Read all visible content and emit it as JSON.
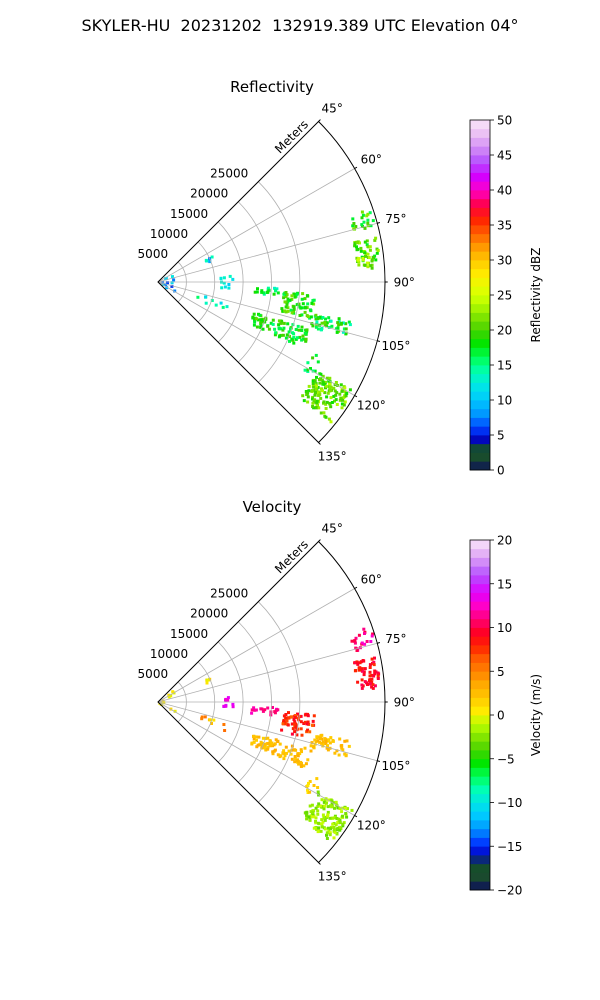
{
  "figure": {
    "title": "SKYLER-HU  20231202  132919.389 UTC Elevation 04°"
  },
  "chart_data": [
    {
      "type": "polar-sector-heatmap",
      "title": "Reflectivity",
      "radial_label": "Meters",
      "r_ticks": [
        5000,
        10000,
        15000,
        20000,
        25000
      ],
      "r_tick_labels": [
        "5000",
        "10000",
        "15000",
        "20000",
        "25000"
      ],
      "rlim": [
        0,
        40000
      ],
      "theta_ticks": [
        45,
        60,
        75,
        90,
        105,
        120,
        135
      ],
      "theta_tick_labels": [
        "45°",
        "60°",
        "75°",
        "90°",
        "105°",
        "120°",
        "135°"
      ],
      "theta_range": [
        45,
        135
      ],
      "grid": true,
      "colorbar": {
        "label": "Reflectivity dBZ",
        "range": [
          0,
          50
        ],
        "ticks": [
          0,
          5,
          10,
          15,
          20,
          25,
          30,
          35,
          40,
          45,
          50
        ],
        "tick_labels": [
          "0",
          "5",
          "10",
          "15",
          "20",
          "25",
          "30",
          "35",
          "40",
          "45",
          "50"
        ],
        "stops": [
          {
            "v": 0,
            "color": "#0b0b5e"
          },
          {
            "v": 1.5,
            "color": "#1a4a2e"
          },
          {
            "v": 3,
            "color": "#14502a"
          },
          {
            "v": 4.5,
            "color": "#0000c8"
          },
          {
            "v": 6,
            "color": "#0040ff"
          },
          {
            "v": 8,
            "color": "#0096ff"
          },
          {
            "v": 10,
            "color": "#00c8ff"
          },
          {
            "v": 12,
            "color": "#00e6e6"
          },
          {
            "v": 14,
            "color": "#00ffb4"
          },
          {
            "v": 16,
            "color": "#00ff5a"
          },
          {
            "v": 18,
            "color": "#00e600"
          },
          {
            "v": 20,
            "color": "#46d200"
          },
          {
            "v": 22,
            "color": "#82e600"
          },
          {
            "v": 24,
            "color": "#beff00"
          },
          {
            "v": 26,
            "color": "#e6ff00"
          },
          {
            "v": 28,
            "color": "#ffeb00"
          },
          {
            "v": 30,
            "color": "#ffc800"
          },
          {
            "v": 32,
            "color": "#ff9600"
          },
          {
            "v": 34,
            "color": "#ff5a00"
          },
          {
            "v": 36,
            "color": "#ff1e00"
          },
          {
            "v": 38,
            "color": "#ff0050"
          },
          {
            "v": 40,
            "color": "#ff00c8"
          },
          {
            "v": 42,
            "color": "#d200ff"
          },
          {
            "v": 44,
            "color": "#b450ff"
          },
          {
            "v": 46,
            "color": "#d28cf5"
          },
          {
            "v": 48,
            "color": "#ebbef5"
          },
          {
            "v": 50,
            "color": "#fae6fa"
          }
        ]
      },
      "echoes": [
        {
          "az_min": 47,
          "az_max": 130,
          "r_min": 0,
          "r_max": 3200,
          "value": 9,
          "spread": 4,
          "density": 0.45
        },
        {
          "az_min": 63,
          "az_max": 67,
          "r_min": 9000,
          "r_max": 10400,
          "value": 9,
          "spread": 5,
          "density": 0.5
        },
        {
          "az_min": 84,
          "az_max": 94,
          "r_min": 10800,
          "r_max": 13000,
          "value": 12,
          "spread": 4,
          "density": 0.7
        },
        {
          "az_min": 106,
          "az_max": 113,
          "r_min": 7000,
          "r_max": 13000,
          "value": 14,
          "spread": 3,
          "density": 0.35
        },
        {
          "az_min": 92,
          "az_max": 96,
          "r_min": 16000,
          "r_max": 21000,
          "value": 16,
          "spread": 3,
          "density": 0.8
        },
        {
          "az_min": 94,
          "az_max": 103,
          "r_min": 22000,
          "r_max": 27500,
          "value": 19,
          "spread": 3,
          "density": 0.85
        },
        {
          "az_min": 101,
          "az_max": 106,
          "r_min": 27500,
          "r_max": 34500,
          "value": 17,
          "spread": 4,
          "density": 0.75
        },
        {
          "az_min": 107,
          "az_max": 114,
          "r_min": 17500,
          "r_max": 28000,
          "value": 18,
          "spread": 3,
          "density": 0.85
        },
        {
          "az_min": 114,
          "az_max": 121,
          "r_min": 29500,
          "r_max": 32000,
          "value": 17,
          "spread": 3,
          "density": 0.3
        },
        {
          "az_min": 119,
          "az_max": 129,
          "r_min": 32000,
          "r_max": 39000,
          "value": 21,
          "spread": 3,
          "density": 0.9
        },
        {
          "az_min": 78,
          "az_max": 86,
          "r_min": 35000,
          "r_max": 39000,
          "value": 21,
          "spread": 4,
          "density": 0.8
        },
        {
          "az_min": 70,
          "az_max": 75,
          "r_min": 35500,
          "r_max": 39500,
          "value": 19,
          "spread": 4,
          "density": 0.45
        }
      ]
    },
    {
      "type": "polar-sector-heatmap",
      "title": "Velocity",
      "radial_label": "Meters",
      "r_ticks": [
        5000,
        10000,
        15000,
        20000,
        25000
      ],
      "r_tick_labels": [
        "5000",
        "10000",
        "15000",
        "20000",
        "25000"
      ],
      "rlim": [
        0,
        40000
      ],
      "theta_ticks": [
        45,
        60,
        75,
        90,
        105,
        120,
        135
      ],
      "theta_tick_labels": [
        "45°",
        "60°",
        "75°",
        "90°",
        "105°",
        "120°",
        "135°"
      ],
      "theta_range": [
        45,
        135
      ],
      "grid": true,
      "colorbar": {
        "label": "Velocity (m/s)",
        "range": [
          -20,
          20
        ],
        "ticks": [
          -20,
          -15,
          -10,
          -5,
          0,
          5,
          10,
          15,
          20
        ],
        "tick_labels": [
          "−20",
          "−15",
          "−10",
          "−5",
          "0",
          "5",
          "10",
          "15",
          "20"
        ],
        "stops": [
          {
            "v": -20,
            "color": "#0b0b5e"
          },
          {
            "v": -18.5,
            "color": "#1a4a2e"
          },
          {
            "v": -17,
            "color": "#14502a"
          },
          {
            "v": -16,
            "color": "#0000c8"
          },
          {
            "v": -14.5,
            "color": "#0040ff"
          },
          {
            "v": -13,
            "color": "#0096ff"
          },
          {
            "v": -11.5,
            "color": "#00c8ff"
          },
          {
            "v": -10,
            "color": "#00e6e6"
          },
          {
            "v": -8.5,
            "color": "#00ffb4"
          },
          {
            "v": -7,
            "color": "#00ff5a"
          },
          {
            "v": -5.5,
            "color": "#00e600"
          },
          {
            "v": -4,
            "color": "#46d200"
          },
          {
            "v": -2.5,
            "color": "#82e600"
          },
          {
            "v": -1,
            "color": "#beff00"
          },
          {
            "v": 0.5,
            "color": "#ffeb00"
          },
          {
            "v": 2,
            "color": "#ffc800"
          },
          {
            "v": 3.5,
            "color": "#ffaa00"
          },
          {
            "v": 5,
            "color": "#ff8200"
          },
          {
            "v": 6.5,
            "color": "#ff5a00"
          },
          {
            "v": 8,
            "color": "#ff1e00"
          },
          {
            "v": 9.5,
            "color": "#ff0028"
          },
          {
            "v": 11,
            "color": "#ff0078"
          },
          {
            "v": 12.5,
            "color": "#ff00c8"
          },
          {
            "v": 14,
            "color": "#e100ff"
          },
          {
            "v": 16,
            "color": "#b450ff"
          },
          {
            "v": 18,
            "color": "#dca0f5"
          },
          {
            "v": 20,
            "color": "#fae6fa"
          }
        ]
      },
      "echoes": [
        {
          "az_min": 47,
          "az_max": 130,
          "r_min": 0,
          "r_max": 3200,
          "value": 0.5,
          "spread": 1,
          "density": 0.45
        },
        {
          "az_min": 63,
          "az_max": 67,
          "r_min": 9000,
          "r_max": 10400,
          "value": 0.5,
          "spread": 1.5,
          "density": 0.5
        },
        {
          "az_min": 84,
          "az_max": 94,
          "r_min": 10800,
          "r_max": 13000,
          "value": 13.5,
          "spread": 1,
          "density": 0.7
        },
        {
          "az_min": 106,
          "az_max": 113,
          "r_min": 7000,
          "r_max": 13000,
          "value": 3,
          "spread": 3,
          "density": 0.35
        },
        {
          "az_min": 92,
          "az_max": 96,
          "r_min": 16000,
          "r_max": 21000,
          "value": 12,
          "spread": 1.5,
          "density": 0.8
        },
        {
          "az_min": 94,
          "az_max": 103,
          "r_min": 22000,
          "r_max": 27500,
          "value": 8,
          "spread": 2,
          "density": 0.85
        },
        {
          "az_min": 101,
          "az_max": 106,
          "r_min": 27500,
          "r_max": 34500,
          "value": 2.5,
          "spread": 1,
          "density": 0.75
        },
        {
          "az_min": 107,
          "az_max": 114,
          "r_min": 17500,
          "r_max": 28000,
          "value": 2.5,
          "spread": 1,
          "density": 0.85
        },
        {
          "az_min": 114,
          "az_max": 121,
          "r_min": 29500,
          "r_max": 32000,
          "value": 1.5,
          "spread": 1,
          "density": 0.3
        },
        {
          "az_min": 119,
          "az_max": 129,
          "r_min": 32000,
          "r_max": 39000,
          "value": -2,
          "spread": 1.5,
          "density": 0.9
        },
        {
          "az_min": 78,
          "az_max": 86,
          "r_min": 35000,
          "r_max": 39000,
          "value": 9,
          "spread": 1.5,
          "density": 0.8
        },
        {
          "az_min": 70,
          "az_max": 75,
          "r_min": 35500,
          "r_max": 39500,
          "value": 11,
          "spread": 2,
          "density": 0.45
        }
      ]
    }
  ]
}
